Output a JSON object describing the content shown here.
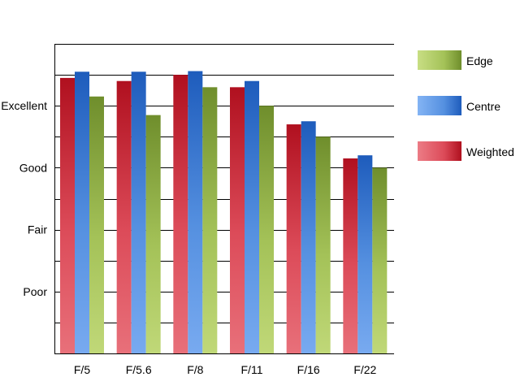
{
  "chart_data": {
    "type": "bar",
    "title": "",
    "xlabel": "",
    "ylabel": "",
    "categories": [
      "F/5",
      "F/5.6",
      "F/8",
      "F/11",
      "F/16",
      "F/22"
    ],
    "y_tick_labels": [
      {
        "value": 1,
        "label": "Poor"
      },
      {
        "value": 2,
        "label": "Fair"
      },
      {
        "value": 3,
        "label": "Good"
      },
      {
        "value": 4,
        "label": "Excellent"
      }
    ],
    "ylim": [
      0,
      5
    ],
    "grid": true,
    "legend_position": "right",
    "series": [
      {
        "name": "Weighted",
        "color": "#c0182a",
        "values": [
          4.45,
          4.4,
          4.5,
          4.3,
          3.7,
          3.15
        ]
      },
      {
        "name": "Centre",
        "color": "#2868c8",
        "values": [
          4.55,
          4.55,
          4.56,
          4.4,
          3.75,
          3.2
        ]
      },
      {
        "name": "Edge",
        "color": "#7a9a30",
        "values": [
          4.15,
          3.85,
          4.3,
          4.0,
          3.5,
          3.0
        ]
      }
    ],
    "legend_order": [
      "Edge",
      "Centre",
      "Weighted"
    ]
  }
}
